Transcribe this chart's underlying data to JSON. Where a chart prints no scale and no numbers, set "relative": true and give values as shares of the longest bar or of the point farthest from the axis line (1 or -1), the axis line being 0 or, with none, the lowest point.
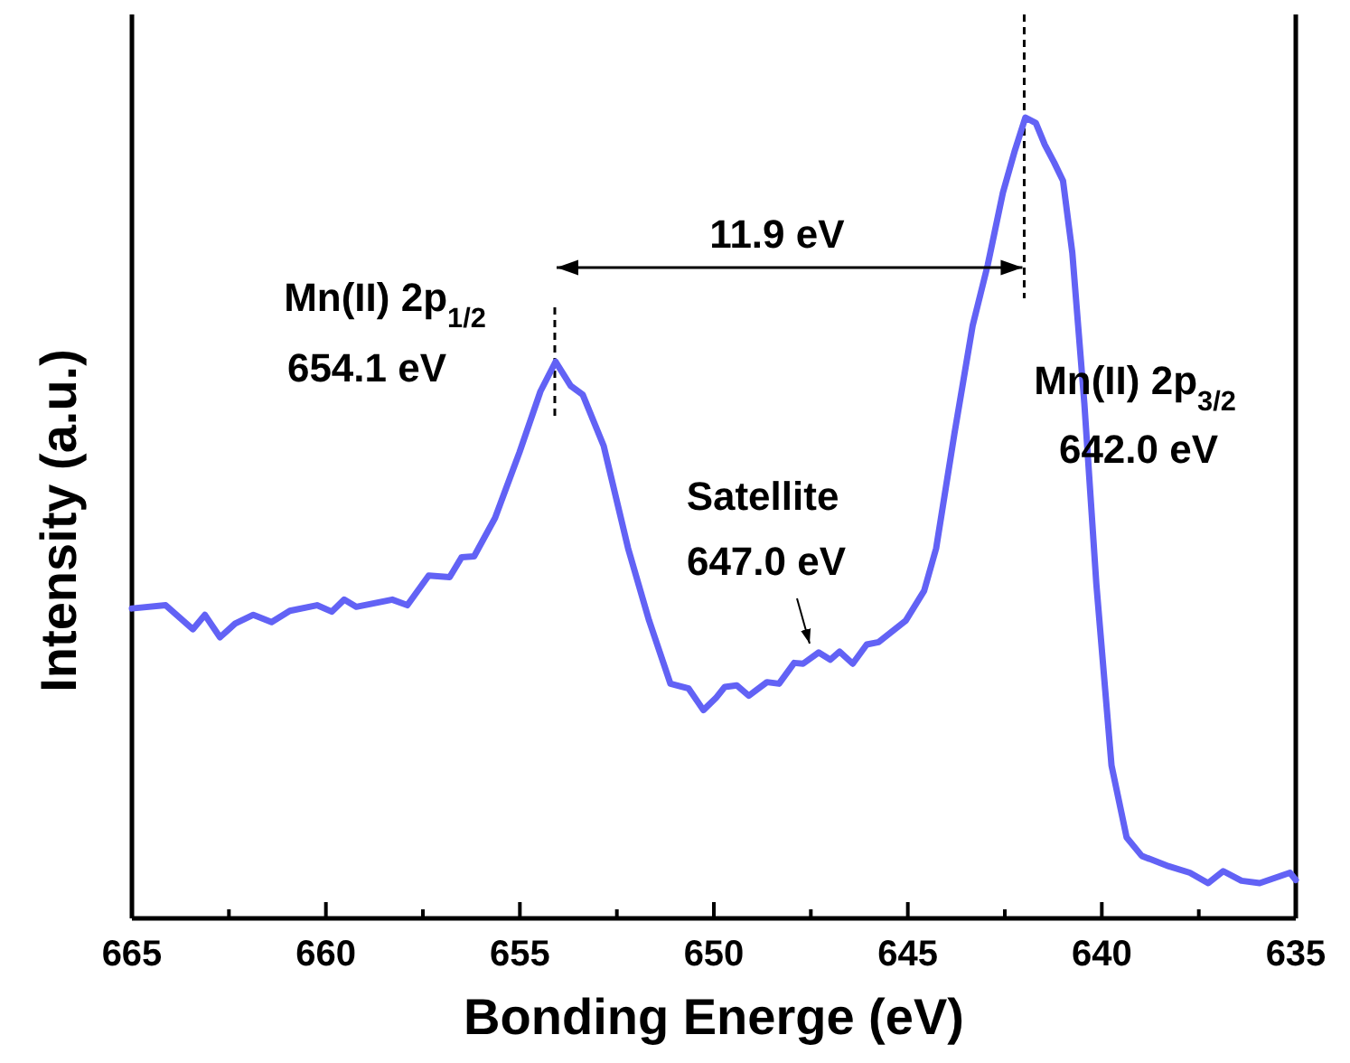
{
  "chart_data": {
    "type": "line",
    "xlabel": "Bonding Energe (eV)",
    "ylabel": "Intensity (a.u.)",
    "relative": true,
    "xlim": [
      665,
      635
    ],
    "xticks": [
      665,
      {
        "value": 662.5,
        "label": null
      },
      660,
      {
        "value": 657.5,
        "label": null
      },
      655,
      {
        "value": 652.5,
        "label": null
      },
      650,
      {
        "value": 647.5,
        "label": null
      },
      645,
      {
        "value": 642.5,
        "label": null
      },
      640,
      {
        "value": 637.5,
        "label": null
      },
      635
    ],
    "grid": false,
    "marker": "none",
    "line_style": "solid",
    "x": [
      665,
      664.13,
      663.43,
      663.12,
      662.73,
      662.34,
      661.87,
      661.4,
      660.93,
      660.23,
      659.85,
      659.53,
      659.22,
      658.29,
      657.9,
      657.35,
      656.81,
      656.5,
      656.18,
      655.64,
      655.01,
      654.47,
      654.08,
      653.69,
      653.38,
      652.84,
      652.21,
      651.67,
      651.12,
      650.65,
      650.27,
      649.95,
      649.72,
      649.41,
      649.1,
      648.63,
      648.32,
      647.93,
      647.7,
      647.3,
      647,
      646.76,
      646.42,
      646.06,
      645.75,
      645.05,
      644.58,
      644.27,
      643.8,
      643.33,
      642.94,
      642.55,
      642.24,
      641.97,
      641.7,
      641.47,
      641.23,
      641,
      640.76,
      640.45,
      640.14,
      639.75,
      639.36,
      638.97,
      638.27,
      637.73,
      637.26,
      636.87,
      636.4,
      635.93,
      635.15,
      635
    ],
    "series": [
      {
        "color": "#6262f5",
        "values": [
          0.387,
          0.391,
          0.361,
          0.379,
          0.351,
          0.368,
          0.379,
          0.37,
          0.384,
          0.391,
          0.383,
          0.398,
          0.389,
          0.398,
          0.391,
          0.428,
          0.426,
          0.451,
          0.452,
          0.5,
          0.582,
          0.658,
          0.695,
          0.665,
          0.654,
          0.59,
          0.462,
          0.372,
          0.293,
          0.287,
          0.26,
          0.275,
          0.289,
          0.291,
          0.278,
          0.295,
          0.293,
          0.319,
          0.318,
          0.332,
          0.323,
          0.333,
          0.318,
          0.342,
          0.345,
          0.372,
          0.409,
          0.462,
          0.605,
          0.74,
          0.816,
          0.906,
          0.959,
          1,
          0.993,
          0.966,
          0.944,
          0.921,
          0.831,
          0.643,
          0.417,
          0.191,
          0.101,
          0.078,
          0.065,
          0.057,
          0.044,
          0.059,
          0.047,
          0.044,
          0.057,
          0.048
        ]
      }
    ],
    "ref_lines": [
      {
        "axis": "x",
        "value": 654.1,
        "line_style": "dashed",
        "color": "#000000"
      },
      {
        "axis": "x",
        "value": 642.0,
        "line_style": "dashed",
        "color": "#000000"
      }
    ],
    "annotations": [
      "Mn(II) 2p$_{1/2}$",
      "654.1 eV",
      "11.9 eV",
      "Satellite",
      "647.0 eV",
      "Mn(II) 2p$_{3/2}$",
      "642.0 eV"
    ]
  }
}
